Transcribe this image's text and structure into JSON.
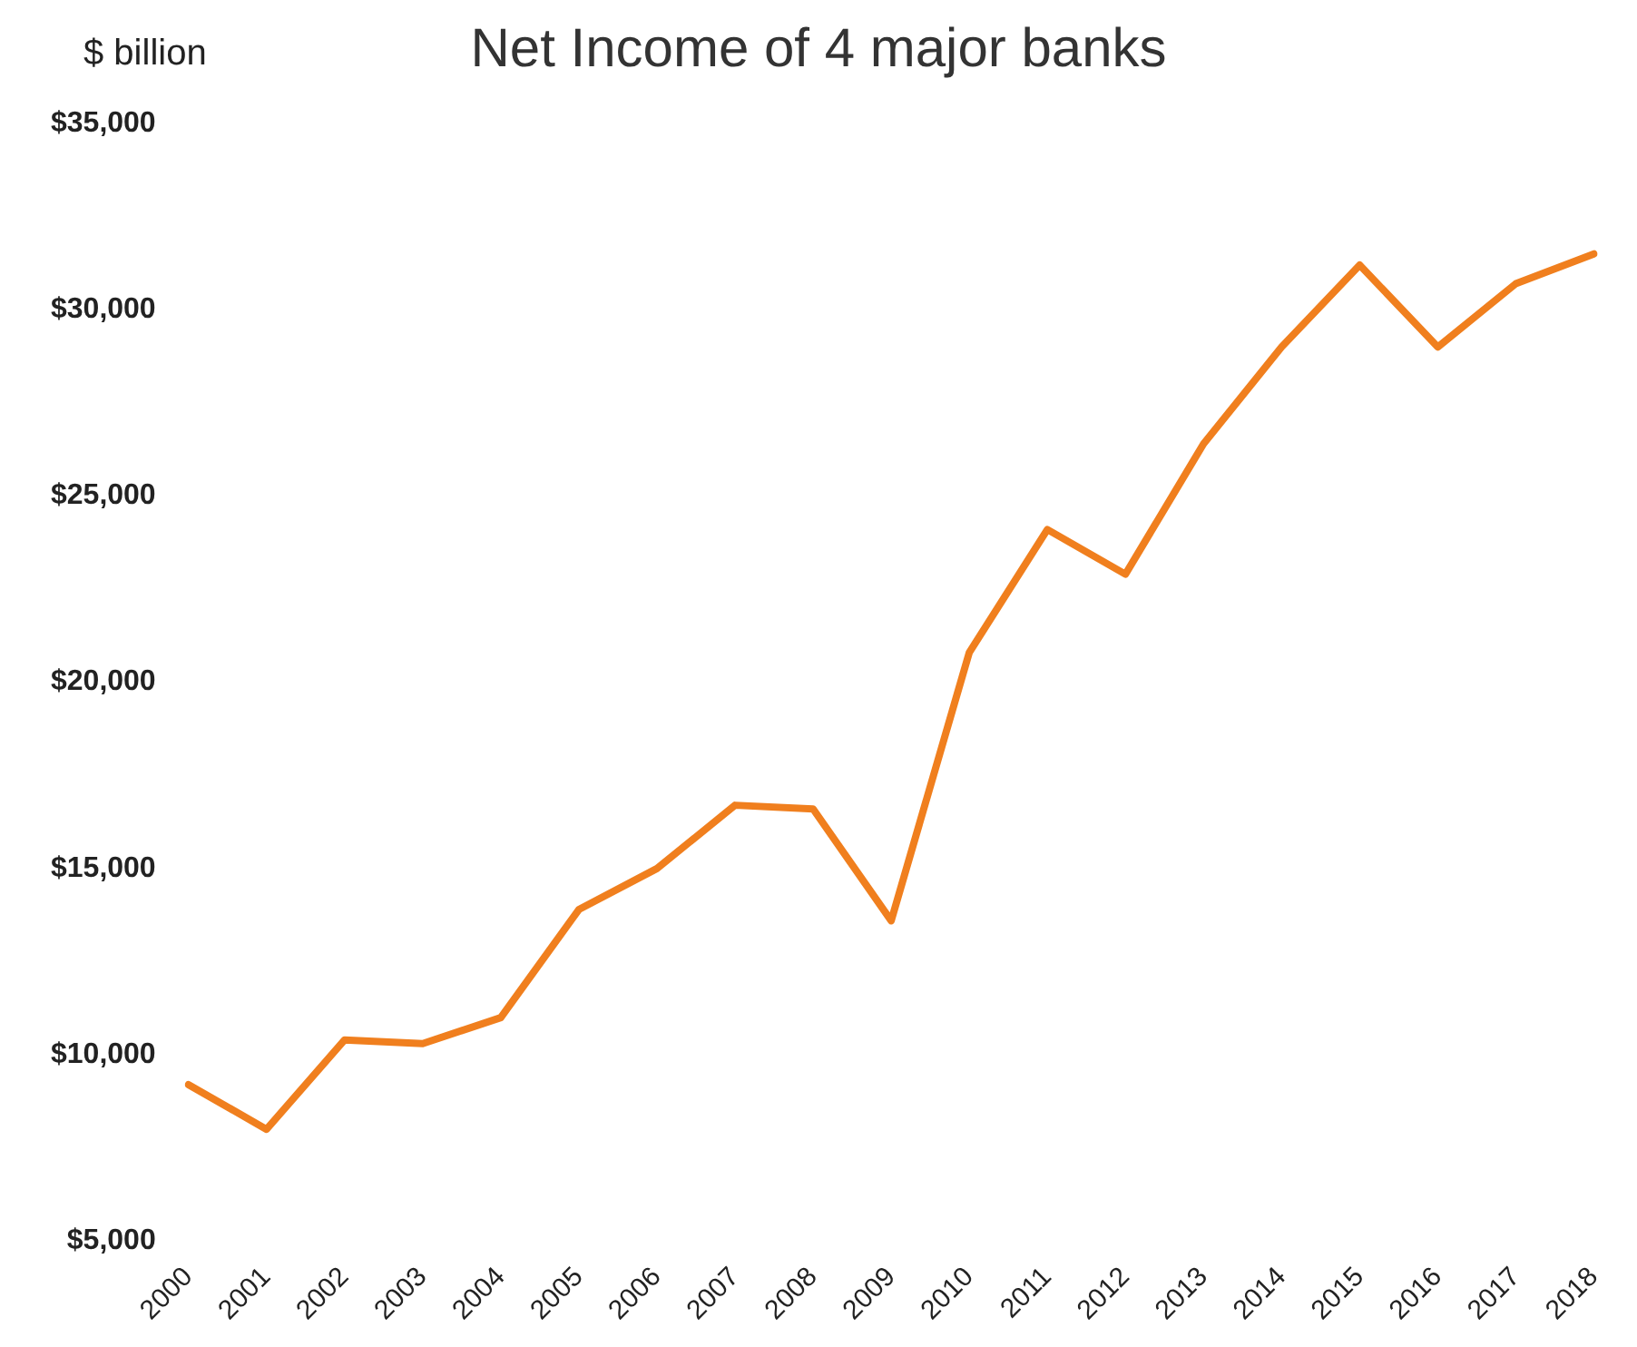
{
  "chart_data": {
    "type": "line",
    "title": "Net Income of 4 major banks",
    "ylabel": "$ billion",
    "categories": [
      "2000",
      "2001",
      "2002",
      "2003",
      "2004",
      "2005",
      "2006",
      "2007",
      "2008",
      "2009",
      "2010",
      "2011",
      "2012",
      "2013",
      "2014",
      "2015",
      "2016",
      "2017",
      "2018"
    ],
    "series": [
      {
        "color": "#f07f1e",
        "values": [
          9200,
          8000,
          10400,
          10300,
          11000,
          13900,
          15000,
          16700,
          16600,
          13600,
          20800,
          24100,
          22900,
          26400,
          29000,
          31200,
          29000,
          30700,
          31500
        ]
      }
    ],
    "ylim": [
      5000,
      35000
    ],
    "yticks": [
      {
        "value": 5000,
        "label": "$5,000"
      },
      {
        "value": 10000,
        "label": "$10,000"
      },
      {
        "value": 15000,
        "label": "$15,000"
      },
      {
        "value": 20000,
        "label": "$20,000"
      },
      {
        "value": 25000,
        "label": "$25,000"
      },
      {
        "value": 30000,
        "label": "$30,000"
      },
      {
        "value": 35000,
        "label": "$35,000"
      }
    ],
    "grid": false,
    "legend": false,
    "marker": "none",
    "line_style": "solid"
  }
}
